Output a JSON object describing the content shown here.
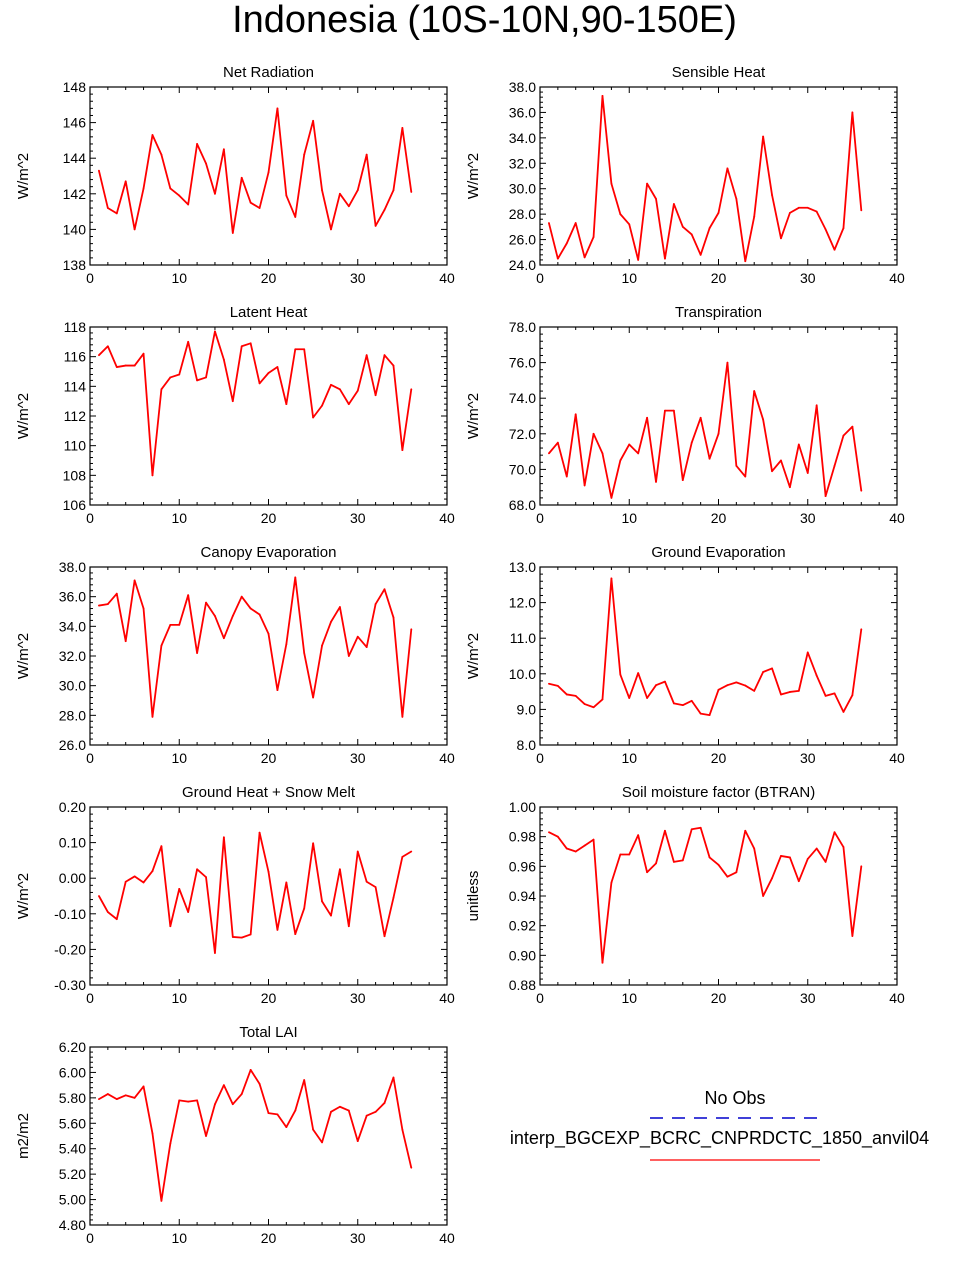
{
  "page_title": "Indonesia (10S-10N,90-150E)",
  "legend": {
    "entries": [
      {
        "label": "No Obs",
        "color": "#0000cc",
        "style": "dashed"
      },
      {
        "label": "interp_BGCEXP_BCRC_CNPRDCTC_1850_anvil04",
        "color": "#ff0000",
        "style": "solid"
      }
    ]
  },
  "chart_data": [
    {
      "type": "line",
      "title": "Net Radiation",
      "ylabel": "W/m^2",
      "xlim": [
        0,
        40
      ],
      "xticks": [
        "0",
        "10",
        "20",
        "30",
        "40"
      ],
      "ylim": [
        138,
        148
      ],
      "yticks": [
        "138",
        "140",
        "142",
        "144",
        "146",
        "148"
      ],
      "series": [
        {
          "color": "#ff0000",
          "x": [
            1,
            2,
            3,
            4,
            5,
            6,
            7,
            8,
            9,
            10,
            11,
            12,
            13,
            14,
            15,
            16,
            17,
            18,
            19,
            20,
            21,
            22,
            23,
            24,
            25,
            26,
            27,
            28,
            29,
            30,
            31,
            32,
            33,
            34,
            35,
            36
          ],
          "values": [
            143.3,
            141.2,
            140.9,
            142.7,
            140.0,
            142.3,
            145.3,
            144.2,
            142.3,
            141.9,
            141.4,
            144.8,
            143.7,
            142.0,
            144.5,
            139.8,
            142.9,
            141.5,
            141.2,
            143.2,
            146.8,
            141.9,
            140.7,
            144.2,
            146.1,
            142.2,
            140.0,
            142.0,
            141.3,
            142.2,
            144.2,
            140.2,
            141.1,
            142.2,
            145.7,
            142.1
          ]
        }
      ]
    },
    {
      "type": "line",
      "title": "Sensible Heat",
      "ylabel": "W/m^2",
      "xlim": [
        0,
        40
      ],
      "xticks": [
        "0",
        "10",
        "20",
        "30",
        "40"
      ],
      "ylim": [
        24,
        38
      ],
      "yticks": [
        "24.0",
        "26.0",
        "28.0",
        "30.0",
        "32.0",
        "34.0",
        "36.0",
        "38.0"
      ],
      "series": [
        {
          "color": "#ff0000",
          "x": [
            1,
            2,
            3,
            4,
            5,
            6,
            7,
            8,
            9,
            10,
            11,
            12,
            13,
            14,
            15,
            16,
            17,
            18,
            19,
            20,
            21,
            22,
            23,
            24,
            25,
            26,
            27,
            28,
            29,
            30,
            31,
            32,
            33,
            34,
            35,
            36
          ],
          "values": [
            27.3,
            24.5,
            25.7,
            27.3,
            24.6,
            26.2,
            37.3,
            30.4,
            28.0,
            27.2,
            24.4,
            30.4,
            29.2,
            24.5,
            28.8,
            27.0,
            26.4,
            24.8,
            26.9,
            28.1,
            31.6,
            29.2,
            24.3,
            27.8,
            34.1,
            29.5,
            26.1,
            28.1,
            28.5,
            28.5,
            28.2,
            26.8,
            25.2,
            26.9,
            36.0,
            28.3
          ]
        }
      ]
    },
    {
      "type": "line",
      "title": "Latent Heat",
      "ylabel": "W/m^2",
      "xlim": [
        0,
        40
      ],
      "xticks": [
        "0",
        "10",
        "20",
        "30",
        "40"
      ],
      "ylim": [
        106,
        118
      ],
      "yticks": [
        "106",
        "108",
        "110",
        "112",
        "114",
        "116",
        "118"
      ],
      "series": [
        {
          "color": "#ff0000",
          "x": [
            1,
            2,
            3,
            4,
            5,
            6,
            7,
            8,
            9,
            10,
            11,
            12,
            13,
            14,
            15,
            16,
            17,
            18,
            19,
            20,
            21,
            22,
            23,
            24,
            25,
            26,
            27,
            28,
            29,
            30,
            31,
            32,
            33,
            34,
            35,
            36
          ],
          "values": [
            116.1,
            116.7,
            115.3,
            115.4,
            115.4,
            116.2,
            108.0,
            113.8,
            114.6,
            114.8,
            117.0,
            114.4,
            114.6,
            117.7,
            115.8,
            113.0,
            116.7,
            116.9,
            114.2,
            114.9,
            115.3,
            112.8,
            116.5,
            116.5,
            111.9,
            112.7,
            114.1,
            113.8,
            112.8,
            113.7,
            116.1,
            113.4,
            116.1,
            115.4,
            109.7,
            113.8
          ]
        }
      ]
    },
    {
      "type": "line",
      "title": "Transpiration",
      "ylabel": "W/m^2",
      "xlim": [
        0,
        40
      ],
      "xticks": [
        "0",
        "10",
        "20",
        "30",
        "40"
      ],
      "ylim": [
        68,
        78
      ],
      "yticks": [
        "68.0",
        "70.0",
        "72.0",
        "74.0",
        "76.0",
        "78.0"
      ],
      "series": [
        {
          "color": "#ff0000",
          "x": [
            1,
            2,
            3,
            4,
            5,
            6,
            7,
            8,
            9,
            10,
            11,
            12,
            13,
            14,
            15,
            16,
            17,
            18,
            19,
            20,
            21,
            22,
            23,
            24,
            25,
            26,
            27,
            28,
            29,
            30,
            31,
            32,
            33,
            34,
            35,
            36
          ],
          "values": [
            70.9,
            71.5,
            69.6,
            73.1,
            69.1,
            72.0,
            70.9,
            68.4,
            70.5,
            71.4,
            70.9,
            72.9,
            69.3,
            73.3,
            73.3,
            69.4,
            71.5,
            72.9,
            70.6,
            72.0,
            76.0,
            70.2,
            69.6,
            74.4,
            72.8,
            69.9,
            70.5,
            69.0,
            71.4,
            69.8,
            73.6,
            68.5,
            70.2,
            71.9,
            72.4,
            68.8
          ]
        }
      ]
    },
    {
      "type": "line",
      "title": "Canopy Evaporation",
      "ylabel": "W/m^2",
      "xlim": [
        0,
        40
      ],
      "xticks": [
        "0",
        "10",
        "20",
        "30",
        "40"
      ],
      "ylim": [
        26,
        38
      ],
      "yticks": [
        "26.0",
        "28.0",
        "30.0",
        "32.0",
        "34.0",
        "36.0",
        "38.0"
      ],
      "series": [
        {
          "color": "#ff0000",
          "x": [
            1,
            2,
            3,
            4,
            5,
            6,
            7,
            8,
            9,
            10,
            11,
            12,
            13,
            14,
            15,
            16,
            17,
            18,
            19,
            20,
            21,
            22,
            23,
            24,
            25,
            26,
            27,
            28,
            29,
            30,
            31,
            32,
            33,
            34,
            35,
            36
          ],
          "values": [
            35.4,
            35.5,
            36.2,
            33.0,
            37.1,
            35.2,
            27.9,
            32.7,
            34.1,
            34.1,
            36.1,
            32.2,
            35.6,
            34.7,
            33.2,
            34.7,
            36.0,
            35.2,
            34.8,
            33.5,
            29.7,
            32.8,
            37.3,
            32.2,
            29.2,
            32.7,
            34.3,
            35.3,
            32.0,
            33.3,
            32.6,
            35.5,
            36.5,
            34.6,
            27.9,
            33.8
          ]
        }
      ]
    },
    {
      "type": "line",
      "title": "Ground Evaporation",
      "ylabel": "W/m^2",
      "xlim": [
        0,
        40
      ],
      "xticks": [
        "0",
        "10",
        "20",
        "30",
        "40"
      ],
      "ylim": [
        8,
        13
      ],
      "yticks": [
        "8.0",
        "9.0",
        "10.0",
        "11.0",
        "12.0",
        "13.0"
      ],
      "series": [
        {
          "color": "#ff0000",
          "x": [
            1,
            2,
            3,
            4,
            5,
            6,
            7,
            8,
            9,
            10,
            11,
            12,
            13,
            14,
            15,
            16,
            17,
            18,
            19,
            20,
            21,
            22,
            23,
            24,
            25,
            26,
            27,
            28,
            29,
            30,
            31,
            32,
            33,
            34,
            35,
            36
          ],
          "values": [
            9.72,
            9.66,
            9.42,
            9.38,
            9.15,
            9.06,
            9.28,
            12.68,
            9.98,
            9.32,
            10.02,
            9.32,
            9.68,
            9.78,
            9.17,
            9.12,
            9.24,
            8.88,
            8.84,
            9.55,
            9.68,
            9.76,
            9.67,
            9.52,
            10.05,
            10.15,
            9.42,
            9.49,
            9.52,
            10.6,
            9.95,
            9.38,
            9.45,
            8.93,
            9.4,
            11.25
          ]
        }
      ]
    },
    {
      "type": "line",
      "title": "Ground Heat + Snow Melt",
      "ylabel": "W/m^2",
      "xlim": [
        0,
        40
      ],
      "xticks": [
        "0",
        "10",
        "20",
        "30",
        "40"
      ],
      "ylim": [
        -0.3,
        0.2
      ],
      "yticks": [
        "-0.30",
        "-0.20",
        "-0.10",
        "0.00",
        "0.10",
        "0.20"
      ],
      "series": [
        {
          "color": "#ff0000",
          "x": [
            1,
            2,
            3,
            4,
            5,
            6,
            7,
            8,
            9,
            10,
            11,
            12,
            13,
            14,
            15,
            16,
            17,
            18,
            19,
            20,
            21,
            22,
            23,
            24,
            25,
            26,
            27,
            28,
            29,
            30,
            31,
            32,
            33,
            34,
            35,
            36
          ],
          "values": [
            -0.05,
            -0.095,
            -0.115,
            -0.01,
            0.005,
            -0.012,
            0.02,
            0.09,
            -0.135,
            -0.03,
            -0.095,
            0.025,
            0.003,
            -0.21,
            0.115,
            -0.165,
            -0.167,
            -0.158,
            0.128,
            0.018,
            -0.145,
            -0.012,
            -0.157,
            -0.085,
            0.098,
            -0.065,
            -0.105,
            0.025,
            -0.135,
            0.075,
            -0.01,
            -0.025,
            -0.163,
            -0.055,
            0.06,
            0.075
          ]
        }
      ]
    },
    {
      "type": "line",
      "title": "Soil moisture factor (BTRAN)",
      "ylabel": "unitless",
      "xlim": [
        0,
        40
      ],
      "xticks": [
        "0",
        "10",
        "20",
        "30",
        "40"
      ],
      "ylim": [
        0.88,
        1.0
      ],
      "yticks": [
        "0.88",
        "0.90",
        "0.92",
        "0.94",
        "0.96",
        "0.98",
        "1.00"
      ],
      "series": [
        {
          "color": "#ff0000",
          "x": [
            1,
            2,
            3,
            4,
            5,
            6,
            7,
            8,
            9,
            10,
            11,
            12,
            13,
            14,
            15,
            16,
            17,
            18,
            19,
            20,
            21,
            22,
            23,
            24,
            25,
            26,
            27,
            28,
            29,
            30,
            31,
            32,
            33,
            34,
            35,
            36
          ],
          "values": [
            0.983,
            0.98,
            0.972,
            0.97,
            0.974,
            0.978,
            0.895,
            0.949,
            0.968,
            0.968,
            0.981,
            0.956,
            0.962,
            0.984,
            0.963,
            0.964,
            0.985,
            0.986,
            0.966,
            0.961,
            0.953,
            0.956,
            0.984,
            0.972,
            0.94,
            0.952,
            0.967,
            0.966,
            0.95,
            0.965,
            0.972,
            0.963,
            0.983,
            0.973,
            0.913,
            0.96
          ]
        }
      ]
    },
    {
      "type": "line",
      "title": "Total LAI",
      "ylabel": "m2/m2",
      "xlim": [
        0,
        40
      ],
      "xticks": [
        "0",
        "10",
        "20",
        "30",
        "40"
      ],
      "ylim": [
        4.8,
        6.2
      ],
      "yticks": [
        "4.80",
        "5.00",
        "5.20",
        "5.40",
        "5.60",
        "5.80",
        "6.00",
        "6.20"
      ],
      "series": [
        {
          "color": "#ff0000",
          "x": [
            1,
            2,
            3,
            4,
            5,
            6,
            7,
            8,
            9,
            10,
            11,
            12,
            13,
            14,
            15,
            16,
            17,
            18,
            19,
            20,
            21,
            22,
            23,
            24,
            25,
            26,
            27,
            28,
            29,
            30,
            31,
            32,
            33,
            34,
            35,
            36
          ],
          "values": [
            5.79,
            5.83,
            5.79,
            5.82,
            5.8,
            5.89,
            5.52,
            4.99,
            5.44,
            5.78,
            5.77,
            5.78,
            5.5,
            5.75,
            5.9,
            5.75,
            5.83,
            6.02,
            5.91,
            5.68,
            5.67,
            5.57,
            5.7,
            5.94,
            5.55,
            5.45,
            5.69,
            5.73,
            5.7,
            5.46,
            5.66,
            5.69,
            5.76,
            5.96,
            5.55,
            5.25
          ]
        }
      ]
    }
  ]
}
